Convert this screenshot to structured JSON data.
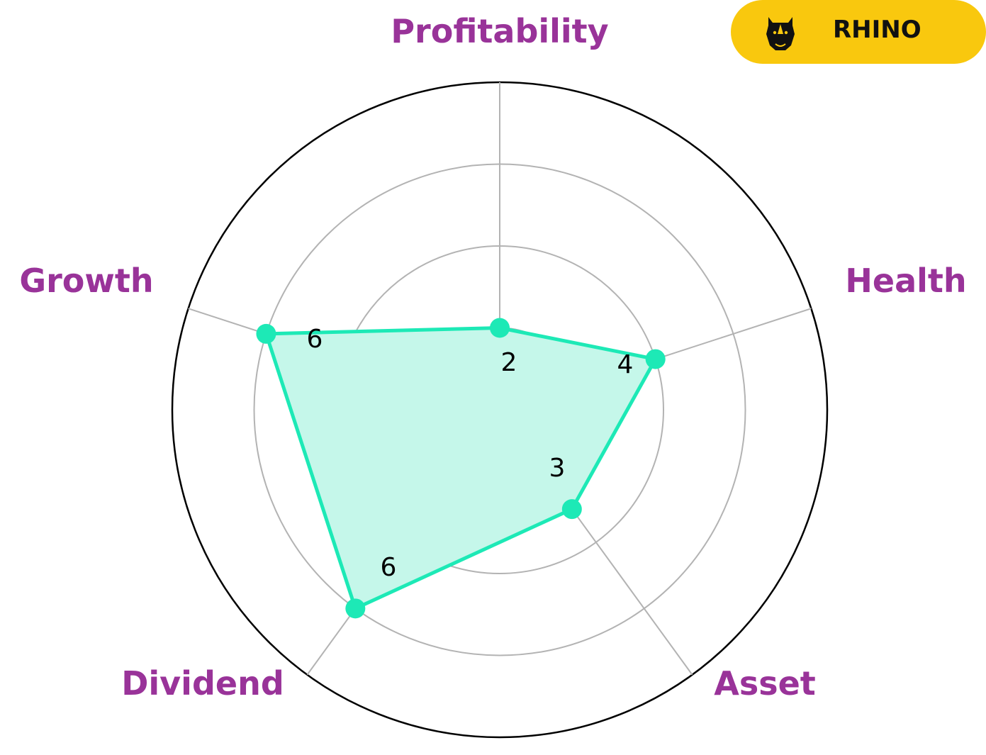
{
  "chart_data": {
    "type": "radar",
    "axes": [
      "Profitability",
      "Health",
      "Asset",
      "Dividend",
      "Growth"
    ],
    "values": [
      2,
      4,
      3,
      6,
      6
    ],
    "r_max": 8,
    "rings": [
      2,
      4,
      6,
      8
    ],
    "grid": true
  },
  "brand": {
    "name": "RHINO"
  },
  "colors": {
    "series": "#1DE9B6",
    "fill": "#C5F7EA",
    "label": "#993399",
    "grid": "#b3b3b3",
    "outer": "#000000",
    "badge": "#F9C80E"
  }
}
